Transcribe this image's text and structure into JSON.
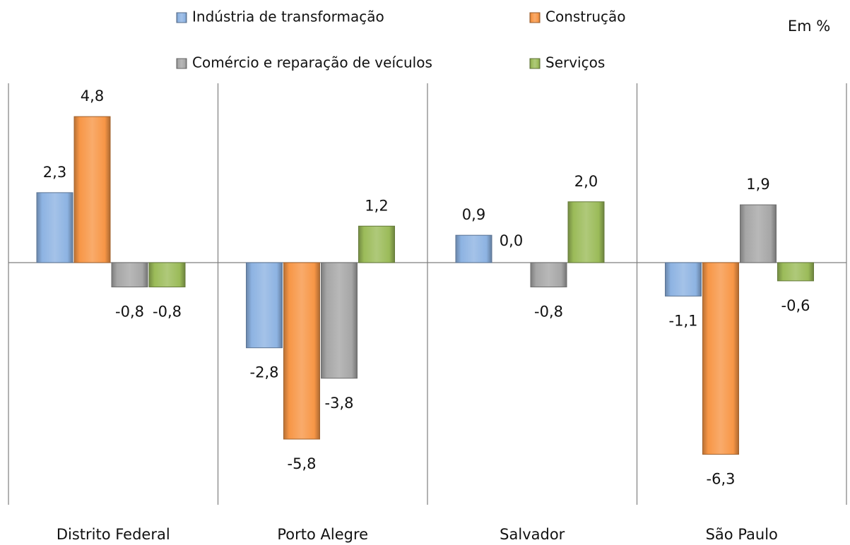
{
  "chart_data": {
    "type": "bar",
    "annotation": "Em %",
    "categories": [
      "Distrito Federal",
      "Porto Alegre",
      "Salvador",
      "São Paulo"
    ],
    "series": [
      {
        "name": "Indústria de transformação",
        "color": "#8db3e2",
        "values": [
          2.3,
          -2.8,
          0.9,
          -1.1
        ],
        "value_labels": [
          "2,3",
          "-2,8",
          "0,9",
          "-1,1"
        ]
      },
      {
        "name": "Construção",
        "color": "#f79646",
        "values": [
          4.8,
          -5.8,
          0.0,
          -6.3
        ],
        "value_labels": [
          "4,8",
          "-5,8",
          "0,0",
          "-6,3"
        ]
      },
      {
        "name": "Comércio e reparação de veículos",
        "color": "#a6a6a6",
        "values": [
          -0.8,
          -3.8,
          -0.8,
          1.9
        ],
        "value_labels": [
          "-0,8",
          "-3,8",
          "-0,8",
          "1,9"
        ]
      },
      {
        "name": "Serviços",
        "color": "#9bbb59",
        "values": [
          -0.8,
          1.2,
          2.0,
          -0.6
        ],
        "value_labels": [
          "-0,8",
          "1,2",
          "2,0",
          "-0,6"
        ]
      }
    ]
  }
}
